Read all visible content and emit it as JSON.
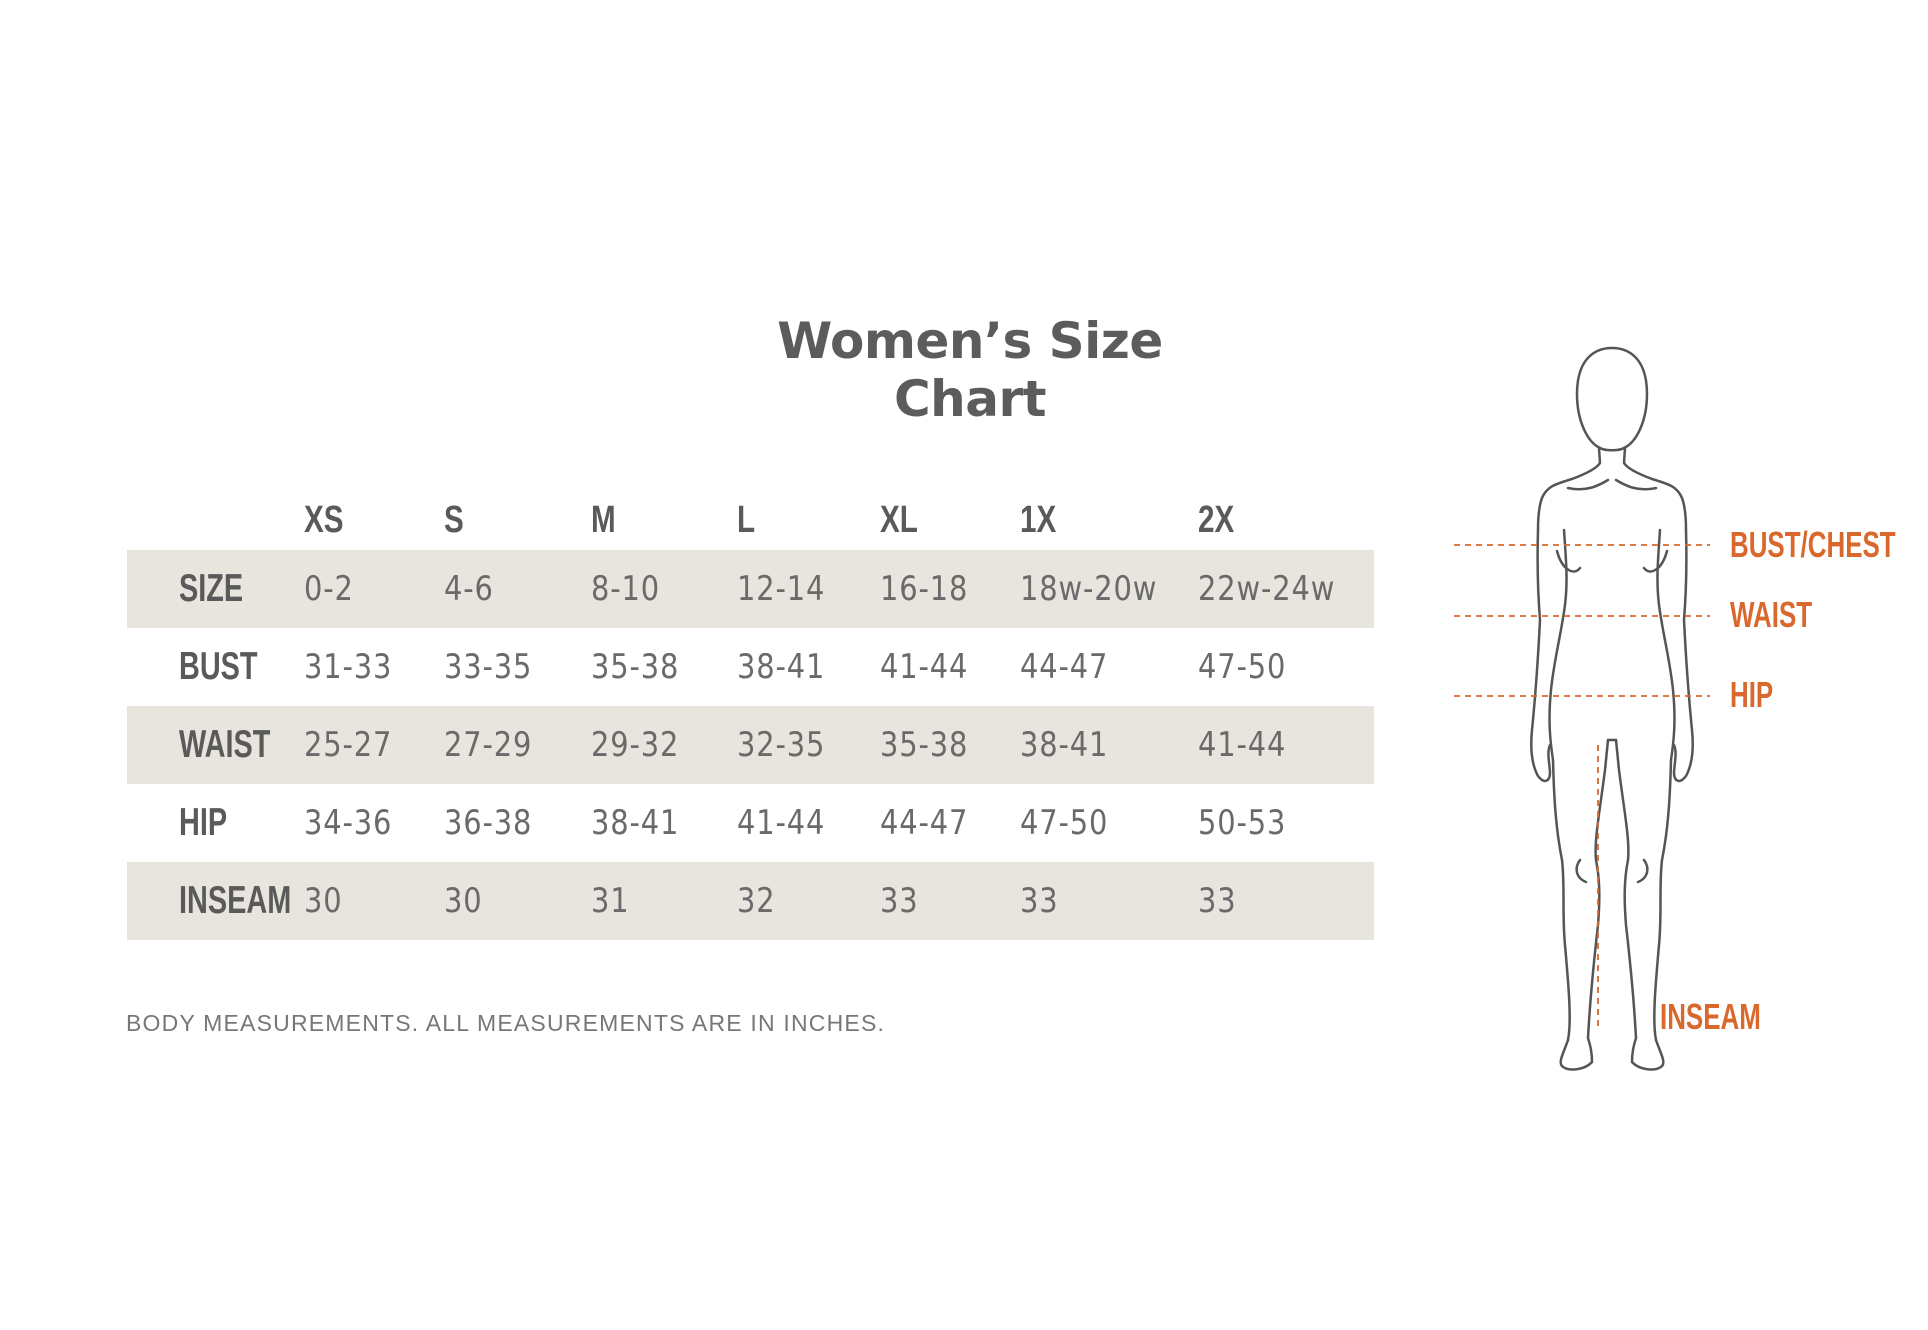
{
  "title": "Women’s Size Chart",
  "columns": [
    "XS",
    "S",
    "M",
    "L",
    "XL",
    "1X",
    "2X"
  ],
  "rows": [
    {
      "label": "SIZE",
      "values": [
        "0-2",
        "4-6",
        "8-10",
        "12-14",
        "16-18",
        "18w-20w",
        "22w-24w"
      ]
    },
    {
      "label": "BUST",
      "values": [
        "31-33",
        "33-35",
        "35-38",
        "38-41",
        "41-44",
        "44-47",
        "47-50"
      ]
    },
    {
      "label": "WAIST",
      "values": [
        "25-27",
        "27-29",
        "29-32",
        "32-35",
        "35-38",
        "38-41",
        "41-44"
      ]
    },
    {
      "label": "HIP",
      "values": [
        "34-36",
        "36-38",
        "38-41",
        "41-44",
        "44-47",
        "47-50",
        "50-53"
      ]
    },
    {
      "label": "INSEAM",
      "values": [
        "30",
        "30",
        "31",
        "32",
        "33",
        "33",
        "33"
      ]
    }
  ],
  "footnote": "BODY MEASUREMENTS. ALL MEASUREMENTS ARE IN INCHES.",
  "figure_labels": {
    "bust": "BUST/CHEST",
    "waist": "WAIST",
    "hip": "HIP",
    "inseam": "INSEAM"
  },
  "colors": {
    "row_shade": "#e8e4de",
    "accent": "#d9682c",
    "text": "#5e5e5e"
  }
}
